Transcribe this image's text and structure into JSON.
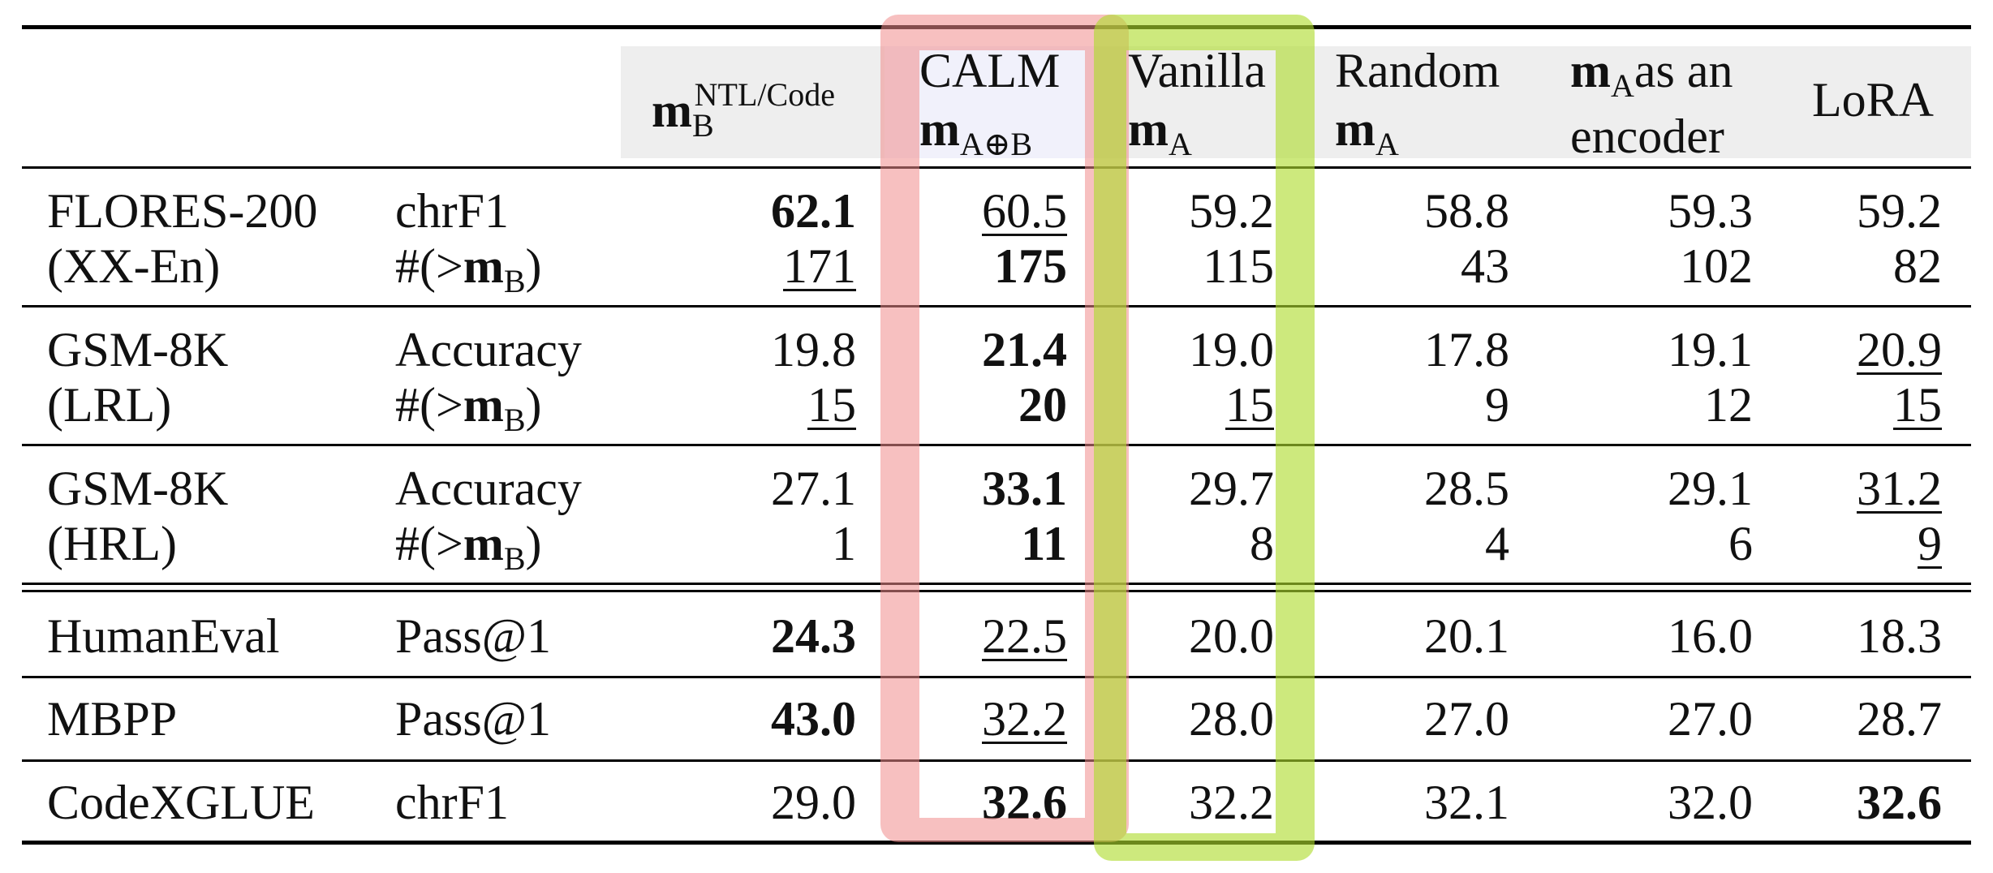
{
  "headers": {
    "mb": {
      "base": "m",
      "sub": "B",
      "sup": "NTL/Code"
    },
    "calm": {
      "line1": "CALM",
      "base": "m",
      "sub": "A⊕B"
    },
    "vanilla": {
      "line1": "Vanilla",
      "base": "m",
      "sub": "A"
    },
    "random": {
      "line1": "Random",
      "base": "m",
      "sub": "A"
    },
    "encoder": {
      "base": "m",
      "sub": "A",
      "line1_rest": "as an",
      "line2": "encoder"
    },
    "lora": {
      "label": "LoRA"
    }
  },
  "metric_prefix": "#(>",
  "metric_base": "m",
  "metric_sub": "B",
  "metric_suffix": ")",
  "rows": [
    {
      "dataset": "FLORES-200",
      "metric": "chrF1",
      "values": [
        "62.1",
        "60.5",
        "59.2",
        "58.8",
        "59.3",
        "59.2"
      ],
      "bold": [
        0
      ],
      "underline": [
        1
      ]
    },
    {
      "dataset": "(XX-En)",
      "metric_is_count": true,
      "values": [
        "171",
        "175",
        "115",
        "43",
        "102",
        "82"
      ],
      "bold": [
        1
      ],
      "underline": [
        0
      ]
    },
    {
      "dataset": "GSM-8K",
      "metric": "Accuracy",
      "values": [
        "19.8",
        "21.4",
        "19.0",
        "17.8",
        "19.1",
        "20.9"
      ],
      "bold": [
        1
      ],
      "underline": [
        5
      ]
    },
    {
      "dataset": "(LRL)",
      "metric_is_count": true,
      "values": [
        "15",
        "20",
        "15",
        "9",
        "12",
        "15"
      ],
      "bold": [
        1
      ],
      "underline": [
        0,
        2,
        5
      ]
    },
    {
      "dataset": "GSM-8K",
      "metric": "Accuracy",
      "values": [
        "27.1",
        "33.1",
        "29.7",
        "28.5",
        "29.1",
        "31.2"
      ],
      "bold": [
        1
      ],
      "underline": [
        5
      ]
    },
    {
      "dataset": "(HRL)",
      "metric_is_count": true,
      "values": [
        "1",
        "11",
        "8",
        "4",
        "6",
        "9"
      ],
      "bold": [
        1
      ],
      "underline": [
        5
      ]
    },
    {
      "dataset": "HumanEval",
      "metric": "Pass@1",
      "values": [
        "24.3",
        "22.5",
        "20.0",
        "20.1",
        "16.0",
        "18.3"
      ],
      "bold": [
        0
      ],
      "underline": [
        1
      ]
    },
    {
      "dataset": "MBPP",
      "metric": "Pass@1",
      "values": [
        "43.0",
        "32.2",
        "28.0",
        "27.0",
        "27.0",
        "28.7"
      ],
      "bold": [
        0
      ],
      "underline": [
        1
      ]
    },
    {
      "dataset": "CodeXGLUE",
      "metric": "chrF1",
      "values": [
        "29.0",
        "32.6",
        "32.2",
        "32.1",
        "32.0",
        "32.6"
      ],
      "bold": [
        1,
        5
      ],
      "underline": []
    }
  ],
  "highlight_colors": {
    "calm": "#f08c8c",
    "vanilla": "#afdc2d"
  }
}
